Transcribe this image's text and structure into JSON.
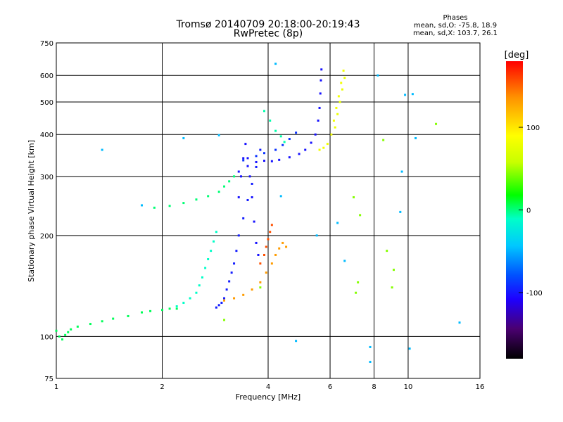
{
  "chart_data": {
    "type": "scatter",
    "title": "Tromsø 20140709 20:18:00-20:19:43",
    "subtitle": "RwPretec (8p)",
    "xlabel": "Frequency [MHz]",
    "ylabel": "Stationary phase Virtual Height [km]",
    "xscale": "log",
    "yscale": "log",
    "xlim": [
      1,
      16
    ],
    "ylim": [
      75,
      750
    ],
    "xticks": [
      1,
      2,
      4,
      6,
      8,
      10,
      16
    ],
    "yticks": [
      75,
      100,
      200,
      300,
      400,
      500,
      600,
      750
    ],
    "grid": true,
    "stats": {
      "heading": "Phases",
      "line1": "mean, sd,O: -75.8, 18.9",
      "line2": "mean, sd,X: 103.7, 26.1"
    },
    "colorbar": {
      "label": "[deg]",
      "ticks": [
        100,
        0,
        -100
      ],
      "range": [
        -180,
        180
      ],
      "colormap": "rainbow",
      "colors": [
        "#000000",
        "#4a0070",
        "#1e00ff",
        "#0050ff",
        "#00c8ff",
        "#00ffc8",
        "#00ff00",
        "#c8ff00",
        "#ffff00",
        "#ff9000",
        "#ff0000"
      ]
    },
    "series": [
      {
        "points": [
          [
            1.0,
            104
          ],
          [
            1.02,
            100
          ],
          [
            1.04,
            98
          ],
          [
            1.06,
            101
          ],
          [
            1.08,
            103
          ],
          [
            1.1,
            105
          ],
          [
            1.15,
            107
          ],
          [
            1.25,
            109
          ],
          [
            1.35,
            111
          ],
          [
            1.45,
            113
          ],
          [
            1.6,
            115
          ],
          [
            1.75,
            118
          ],
          [
            1.85,
            119
          ],
          [
            2.0,
            120
          ],
          [
            2.1,
            121
          ],
          [
            2.2,
            121
          ]
        ],
        "phase": 20
      },
      {
        "points": [
          [
            2.2,
            123
          ],
          [
            2.3,
            126
          ],
          [
            2.4,
            130
          ],
          [
            2.5,
            135
          ],
          [
            2.55,
            142
          ],
          [
            2.6,
            150
          ],
          [
            2.65,
            160
          ],
          [
            2.7,
            170
          ],
          [
            2.75,
            180
          ],
          [
            2.8,
            192
          ],
          [
            2.85,
            205
          ]
        ],
        "phase": 0
      },
      {
        "points": [
          [
            2.85,
            122
          ],
          [
            2.9,
            124
          ],
          [
            2.95,
            126
          ],
          [
            3.0,
            130
          ],
          [
            3.05,
            138
          ],
          [
            3.1,
            146
          ],
          [
            3.15,
            155
          ],
          [
            3.2,
            165
          ],
          [
            3.25,
            180
          ],
          [
            3.3,
            200
          ],
          [
            3.4,
            225
          ],
          [
            3.5,
            255
          ],
          [
            3.6,
            285
          ],
          [
            3.7,
            320
          ],
          [
            3.8,
            360
          ]
        ],
        "phase": -95
      },
      {
        "points": [
          [
            3.3,
            260
          ],
          [
            3.35,
            300
          ],
          [
            3.4,
            340
          ],
          [
            3.45,
            375
          ],
          [
            3.5,
            340
          ],
          [
            3.55,
            300
          ],
          [
            3.6,
            260
          ],
          [
            3.65,
            220
          ],
          [
            3.7,
            190
          ],
          [
            3.75,
            175
          ]
        ],
        "phase": -100
      },
      {
        "points": [
          [
            1.9,
            242
          ],
          [
            2.1,
            245
          ],
          [
            2.3,
            250
          ],
          [
            2.5,
            256
          ],
          [
            2.7,
            262
          ],
          [
            2.9,
            270
          ],
          [
            3.0,
            280
          ],
          [
            3.1,
            290
          ],
          [
            3.2,
            300
          ]
        ],
        "phase": 15
      },
      {
        "points": [
          [
            3.3,
            310
          ],
          [
            3.5,
            322
          ],
          [
            3.7,
            331
          ],
          [
            3.9,
            334
          ],
          [
            4.1,
            333
          ],
          [
            4.3,
            336
          ],
          [
            4.6,
            342
          ],
          [
            4.9,
            350
          ],
          [
            5.1,
            360
          ],
          [
            5.3,
            378
          ],
          [
            5.45,
            400
          ],
          [
            5.55,
            440
          ],
          [
            5.6,
            480
          ],
          [
            5.63,
            530
          ],
          [
            5.65,
            580
          ],
          [
            5.67,
            625
          ]
        ],
        "phase": -100
      },
      {
        "points": [
          [
            3.4,
            335
          ],
          [
            3.7,
            345
          ],
          [
            3.9,
            352
          ],
          [
            4.2,
            360
          ],
          [
            4.4,
            372
          ],
          [
            4.6,
            388
          ],
          [
            4.8,
            405
          ]
        ],
        "phase": -85
      },
      {
        "points": [
          [
            3.9,
            470
          ],
          [
            4.05,
            440
          ],
          [
            4.2,
            410
          ],
          [
            4.35,
            395
          ],
          [
            4.45,
            380
          ]
        ],
        "phase": 5
      },
      {
        "points": [
          [
            3.0,
            128
          ],
          [
            3.2,
            130
          ],
          [
            3.4,
            133
          ],
          [
            3.6,
            138
          ],
          [
            3.8,
            145
          ],
          [
            3.95,
            155
          ],
          [
            4.1,
            165
          ],
          [
            4.2,
            175
          ],
          [
            4.3,
            183
          ],
          [
            4.4,
            190
          ],
          [
            4.5,
            185
          ]
        ],
        "phase": 140
      },
      {
        "points": [
          [
            3.8,
            165
          ],
          [
            3.9,
            175
          ],
          [
            3.95,
            185
          ],
          [
            4.0,
            195
          ],
          [
            4.05,
            205
          ],
          [
            4.1,
            215
          ]
        ],
        "phase": 160
      },
      {
        "points": [
          [
            5.6,
            360
          ],
          [
            5.75,
            365
          ],
          [
            5.9,
            375
          ],
          [
            6.05,
            400
          ],
          [
            6.15,
            440
          ],
          [
            6.25,
            480
          ],
          [
            6.35,
            520
          ],
          [
            6.45,
            570
          ],
          [
            6.55,
            620
          ]
        ],
        "phase": 100
      },
      {
        "points": [
          [
            6.2,
            420
          ],
          [
            6.3,
            460
          ],
          [
            6.4,
            500
          ],
          [
            6.5,
            545
          ],
          [
            6.6,
            590
          ]
        ],
        "phase": 95
      },
      {
        "points": [
          [
            1.35,
            360
          ],
          [
            1.75,
            246
          ],
          [
            2.3,
            390
          ],
          [
            2.9,
            398
          ],
          [
            4.2,
            650
          ],
          [
            4.35,
            262
          ],
          [
            4.8,
            97
          ],
          [
            5.5,
            200
          ],
          [
            6.3,
            218
          ],
          [
            6.6,
            168
          ],
          [
            7.8,
            93
          ],
          [
            7.8,
            84
          ],
          [
            8.2,
            600
          ],
          [
            9.5,
            235
          ],
          [
            9.8,
            525
          ],
          [
            10.3,
            528
          ],
          [
            10.5,
            390
          ],
          [
            9.6,
            310
          ],
          [
            10.1,
            92
          ],
          [
            14.0,
            110
          ]
        ],
        "phase": -40
      },
      {
        "points": [
          [
            8.5,
            385
          ],
          [
            8.7,
            180
          ],
          [
            9.1,
            158
          ],
          [
            9.0,
            140
          ],
          [
            7.1,
            135
          ],
          [
            7.2,
            145
          ],
          [
            7.3,
            230
          ],
          [
            7.0,
            260
          ],
          [
            12.0,
            430
          ],
          [
            3.0,
            112
          ],
          [
            3.8,
            140
          ]
        ],
        "phase": 60
      }
    ]
  }
}
